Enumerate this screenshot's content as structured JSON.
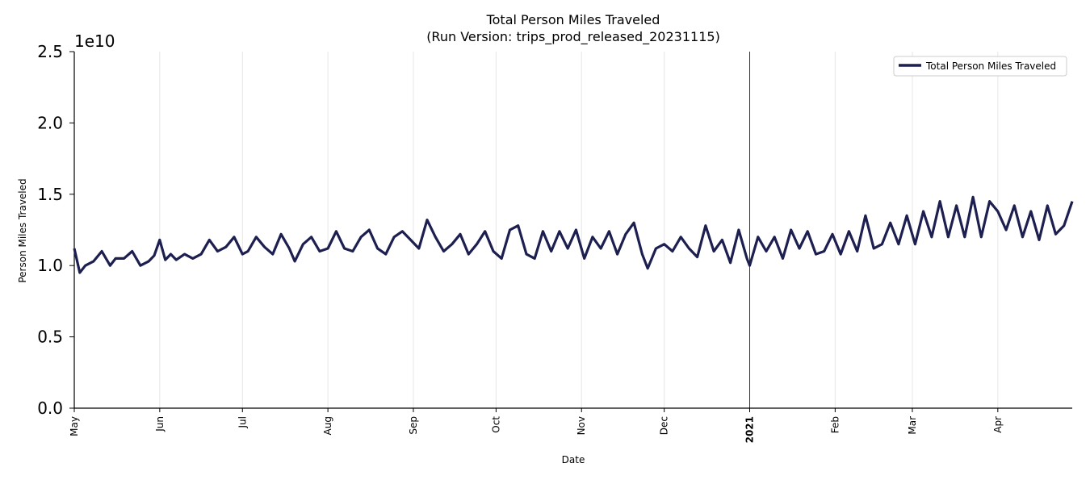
{
  "chart_data": {
    "type": "line",
    "title": "Total Person Miles Traveled",
    "subtitle": "(Run Version: trips_prod_released_20231115)",
    "xlabel": "Date",
    "ylabel": "Person Miles Traveled",
    "y_multiplier": "1e10",
    "ylim": [
      0,
      2.5
    ],
    "yticks": [
      "0.0",
      "0.5",
      "1.0",
      "1.5",
      "2.0",
      "2.5"
    ],
    "xlim": [
      "2020-05-01",
      "2021-04-28"
    ],
    "xticks": [
      {
        "date": "2020-05-01",
        "label": "May",
        "bold": false
      },
      {
        "date": "2020-06-01",
        "label": "Jun",
        "bold": false
      },
      {
        "date": "2020-07-01",
        "label": "Jul",
        "bold": false
      },
      {
        "date": "2020-08-01",
        "label": "Aug",
        "bold": false
      },
      {
        "date": "2020-09-01",
        "label": "Sep",
        "bold": false
      },
      {
        "date": "2020-10-01",
        "label": "Oct",
        "bold": false
      },
      {
        "date": "2020-11-01",
        "label": "Nov",
        "bold": false
      },
      {
        "date": "2020-12-01",
        "label": "Dec",
        "bold": false
      },
      {
        "date": "2021-01-01",
        "label": "2021",
        "bold": true
      },
      {
        "date": "2021-02-01",
        "label": "Feb",
        "bold": false
      },
      {
        "date": "2021-03-01",
        "label": "Mar",
        "bold": false
      },
      {
        "date": "2021-04-01",
        "label": "Apr",
        "bold": false
      }
    ],
    "year_marker": "2021-01-01",
    "grid": "vertical",
    "legend": {
      "position": "top-right"
    },
    "series": [
      {
        "name": "Total Person Miles Traveled",
        "color": "#1c1f4f",
        "points": [
          [
            "2020-05-01",
            1.12
          ],
          [
            "2020-05-03",
            0.95
          ],
          [
            "2020-05-05",
            1.0
          ],
          [
            "2020-05-08",
            1.03
          ],
          [
            "2020-05-11",
            1.1
          ],
          [
            "2020-05-14",
            1.0
          ],
          [
            "2020-05-16",
            1.05
          ],
          [
            "2020-05-19",
            1.05
          ],
          [
            "2020-05-22",
            1.1
          ],
          [
            "2020-05-25",
            1.0
          ],
          [
            "2020-05-28",
            1.03
          ],
          [
            "2020-05-30",
            1.07
          ],
          [
            "2020-06-01",
            1.18
          ],
          [
            "2020-06-03",
            1.04
          ],
          [
            "2020-06-05",
            1.08
          ],
          [
            "2020-06-07",
            1.04
          ],
          [
            "2020-06-10",
            1.08
          ],
          [
            "2020-06-13",
            1.05
          ],
          [
            "2020-06-16",
            1.08
          ],
          [
            "2020-06-19",
            1.18
          ],
          [
            "2020-06-22",
            1.1
          ],
          [
            "2020-06-25",
            1.13
          ],
          [
            "2020-06-28",
            1.2
          ],
          [
            "2020-07-01",
            1.08
          ],
          [
            "2020-07-03",
            1.1
          ],
          [
            "2020-07-06",
            1.2
          ],
          [
            "2020-07-09",
            1.13
          ],
          [
            "2020-07-12",
            1.08
          ],
          [
            "2020-07-15",
            1.22
          ],
          [
            "2020-07-18",
            1.12
          ],
          [
            "2020-07-20",
            1.03
          ],
          [
            "2020-07-23",
            1.15
          ],
          [
            "2020-07-26",
            1.2
          ],
          [
            "2020-07-29",
            1.1
          ],
          [
            "2020-08-01",
            1.12
          ],
          [
            "2020-08-04",
            1.24
          ],
          [
            "2020-08-07",
            1.12
          ],
          [
            "2020-08-10",
            1.1
          ],
          [
            "2020-08-13",
            1.2
          ],
          [
            "2020-08-16",
            1.25
          ],
          [
            "2020-08-19",
            1.12
          ],
          [
            "2020-08-22",
            1.08
          ],
          [
            "2020-08-25",
            1.2
          ],
          [
            "2020-08-28",
            1.24
          ],
          [
            "2020-08-31",
            1.18
          ],
          [
            "2020-09-03",
            1.12
          ],
          [
            "2020-09-06",
            1.32
          ],
          [
            "2020-09-09",
            1.2
          ],
          [
            "2020-09-12",
            1.1
          ],
          [
            "2020-09-15",
            1.15
          ],
          [
            "2020-09-18",
            1.22
          ],
          [
            "2020-09-21",
            1.08
          ],
          [
            "2020-09-24",
            1.15
          ],
          [
            "2020-09-27",
            1.24
          ],
          [
            "2020-09-30",
            1.1
          ],
          [
            "2020-10-03",
            1.05
          ],
          [
            "2020-10-06",
            1.25
          ],
          [
            "2020-10-09",
            1.28
          ],
          [
            "2020-10-12",
            1.08
          ],
          [
            "2020-10-15",
            1.05
          ],
          [
            "2020-10-18",
            1.24
          ],
          [
            "2020-10-21",
            1.1
          ],
          [
            "2020-10-24",
            1.24
          ],
          [
            "2020-10-27",
            1.12
          ],
          [
            "2020-10-30",
            1.25
          ],
          [
            "2020-11-02",
            1.05
          ],
          [
            "2020-11-05",
            1.2
          ],
          [
            "2020-11-08",
            1.12
          ],
          [
            "2020-11-11",
            1.24
          ],
          [
            "2020-11-14",
            1.08
          ],
          [
            "2020-11-17",
            1.22
          ],
          [
            "2020-11-20",
            1.3
          ],
          [
            "2020-11-23",
            1.08
          ],
          [
            "2020-11-25",
            0.98
          ],
          [
            "2020-11-28",
            1.12
          ],
          [
            "2020-12-01",
            1.15
          ],
          [
            "2020-12-04",
            1.1
          ],
          [
            "2020-12-07",
            1.2
          ],
          [
            "2020-12-10",
            1.12
          ],
          [
            "2020-12-13",
            1.06
          ],
          [
            "2020-12-16",
            1.28
          ],
          [
            "2020-12-19",
            1.1
          ],
          [
            "2020-12-22",
            1.18
          ],
          [
            "2020-12-25",
            1.02
          ],
          [
            "2020-12-28",
            1.25
          ],
          [
            "2020-12-31",
            1.05
          ],
          [
            "2021-01-01",
            1.0
          ],
          [
            "2021-01-04",
            1.2
          ],
          [
            "2021-01-07",
            1.1
          ],
          [
            "2021-01-10",
            1.2
          ],
          [
            "2021-01-13",
            1.05
          ],
          [
            "2021-01-16",
            1.25
          ],
          [
            "2021-01-19",
            1.12
          ],
          [
            "2021-01-22",
            1.24
          ],
          [
            "2021-01-25",
            1.08
          ],
          [
            "2021-01-28",
            1.1
          ],
          [
            "2021-01-31",
            1.22
          ],
          [
            "2021-02-03",
            1.08
          ],
          [
            "2021-02-06",
            1.24
          ],
          [
            "2021-02-09",
            1.1
          ],
          [
            "2021-02-12",
            1.35
          ],
          [
            "2021-02-15",
            1.12
          ],
          [
            "2021-02-18",
            1.15
          ],
          [
            "2021-02-21",
            1.3
          ],
          [
            "2021-02-24",
            1.15
          ],
          [
            "2021-02-27",
            1.35
          ],
          [
            "2021-03-02",
            1.15
          ],
          [
            "2021-03-05",
            1.38
          ],
          [
            "2021-03-08",
            1.2
          ],
          [
            "2021-03-11",
            1.45
          ],
          [
            "2021-03-14",
            1.2
          ],
          [
            "2021-03-17",
            1.42
          ],
          [
            "2021-03-20",
            1.2
          ],
          [
            "2021-03-23",
            1.48
          ],
          [
            "2021-03-26",
            1.2
          ],
          [
            "2021-03-29",
            1.45
          ],
          [
            "2021-04-01",
            1.38
          ],
          [
            "2021-04-04",
            1.25
          ],
          [
            "2021-04-07",
            1.42
          ],
          [
            "2021-04-10",
            1.2
          ],
          [
            "2021-04-13",
            1.38
          ],
          [
            "2021-04-16",
            1.18
          ],
          [
            "2021-04-19",
            1.42
          ],
          [
            "2021-04-22",
            1.22
          ],
          [
            "2021-04-25",
            1.28
          ],
          [
            "2021-04-28",
            1.45
          ]
        ]
      }
    ]
  }
}
